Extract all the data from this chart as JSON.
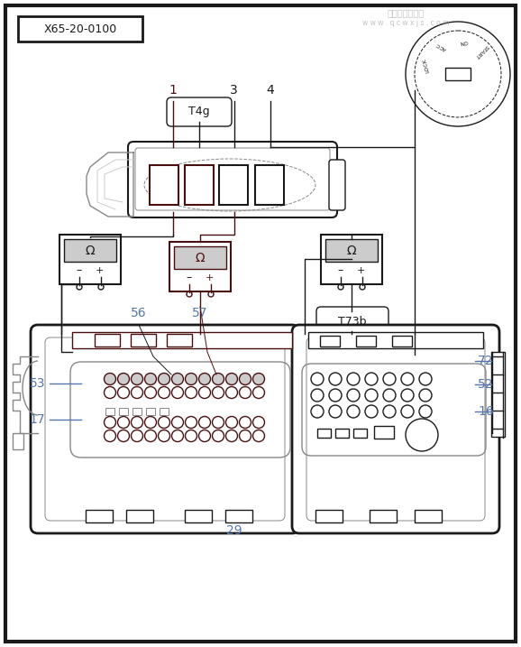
{
  "bg_color": "#ffffff",
  "border_color": "#1a1a1a",
  "dark_red": "#4a1010",
  "blue_label": "#5577aa",
  "gray": "#888888",
  "mid_gray": "#aaaaaa",
  "light_gray": "#cccccc",
  "title_box": "X65-20-0100",
  "connector_label": "T4g",
  "connector2_label": "T73b",
  "watermark_line1": "汽车维修技术网",
  "watermark_line2": "w w w . q c w x j s . c o m"
}
